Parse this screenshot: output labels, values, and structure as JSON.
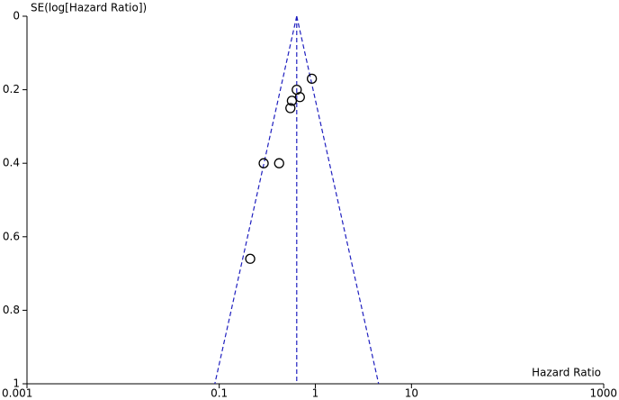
{
  "chart_data": {
    "type": "scatter",
    "y_label": "SE(log[Hazard Ratio])",
    "x_label": "Hazard Ratio",
    "xscale": "log",
    "y_inverted": true,
    "x": [
      0.92,
      0.64,
      0.69,
      0.57,
      0.55,
      0.29,
      0.42,
      0.21
    ],
    "values": [
      0.17,
      0.2,
      0.22,
      0.23,
      0.25,
      0.4,
      0.4,
      0.66
    ],
    "marker_color": "#000000",
    "funnel": {
      "center": 0.64,
      "limits_at_ymax": [
        0.09,
        4.55
      ],
      "color": "#1f1fbf"
    },
    "xlim": [
      0.001,
      1000
    ],
    "xticks": [
      0.001,
      0.1,
      1,
      10,
      1000
    ],
    "ylim": [
      0,
      1
    ],
    "yticks": [
      0,
      0.2,
      0.4,
      0.6,
      0.8,
      1
    ]
  }
}
